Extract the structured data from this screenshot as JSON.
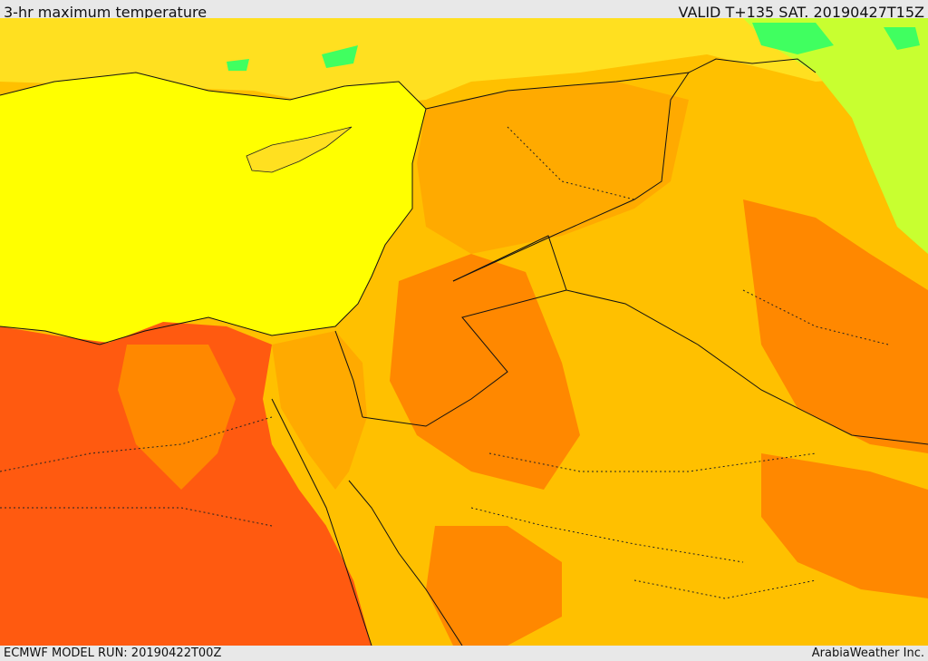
{
  "header": {
    "title": "3-hr maximum temperature",
    "valid_time": "VALID T+135 SAT. 20190427T15Z"
  },
  "footer": {
    "model_run": "ECMWF MODEL RUN: 20190422T00Z",
    "credit": "ArabiaWeather Inc."
  },
  "colors": {
    "sea": "#ffff00",
    "warm": "#ffc000",
    "warmer": "#ffaa00",
    "hot": "#ff8800",
    "hotter": "#ff5a10",
    "cool": "#c8ff30",
    "cooler": "#40ff60",
    "light": "#ffe020"
  }
}
